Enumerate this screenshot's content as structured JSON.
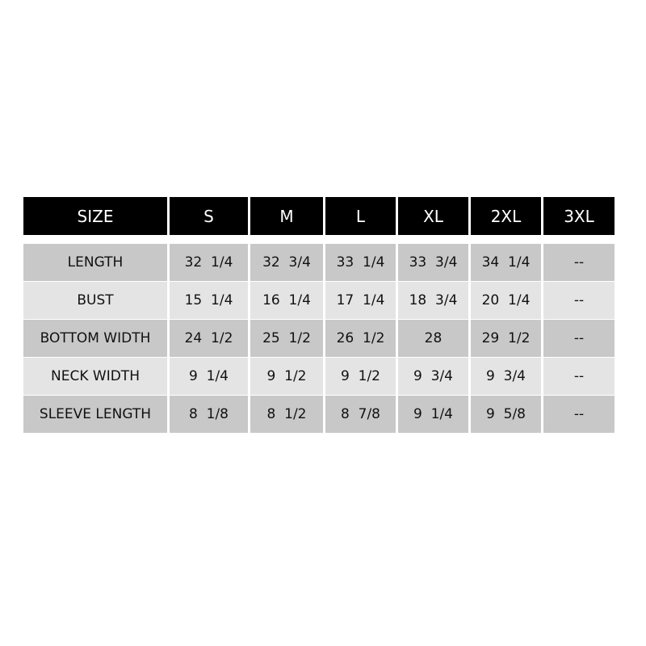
{
  "header": [
    "SIZE",
    "S",
    "M",
    "L",
    "XL",
    "2XL",
    "3XL"
  ],
  "rows": [
    [
      "LENGTH",
      "32  1/4",
      "32  3/4",
      "33  1/4",
      "33  3/4",
      "34  1/4",
      "--"
    ],
    [
      "BUST",
      "15  1/4",
      "16  1/4",
      "17  1/4",
      "18  3/4",
      "20  1/4",
      "--"
    ],
    [
      "BOTTOM WIDTH",
      "24  1/2",
      "25  1/2",
      "26  1/2",
      "28",
      "29  1/2",
      "--"
    ],
    [
      "NECK WIDTH",
      "9  1/4",
      "9  1/2",
      "9  1/2",
      "9  3/4",
      "9  3/4",
      "--"
    ],
    [
      "SLEEVE LENGTH",
      "8  1/8",
      "8  1/2",
      "8  7/8",
      "9  1/4",
      "9  5/8",
      "--"
    ]
  ]
}
